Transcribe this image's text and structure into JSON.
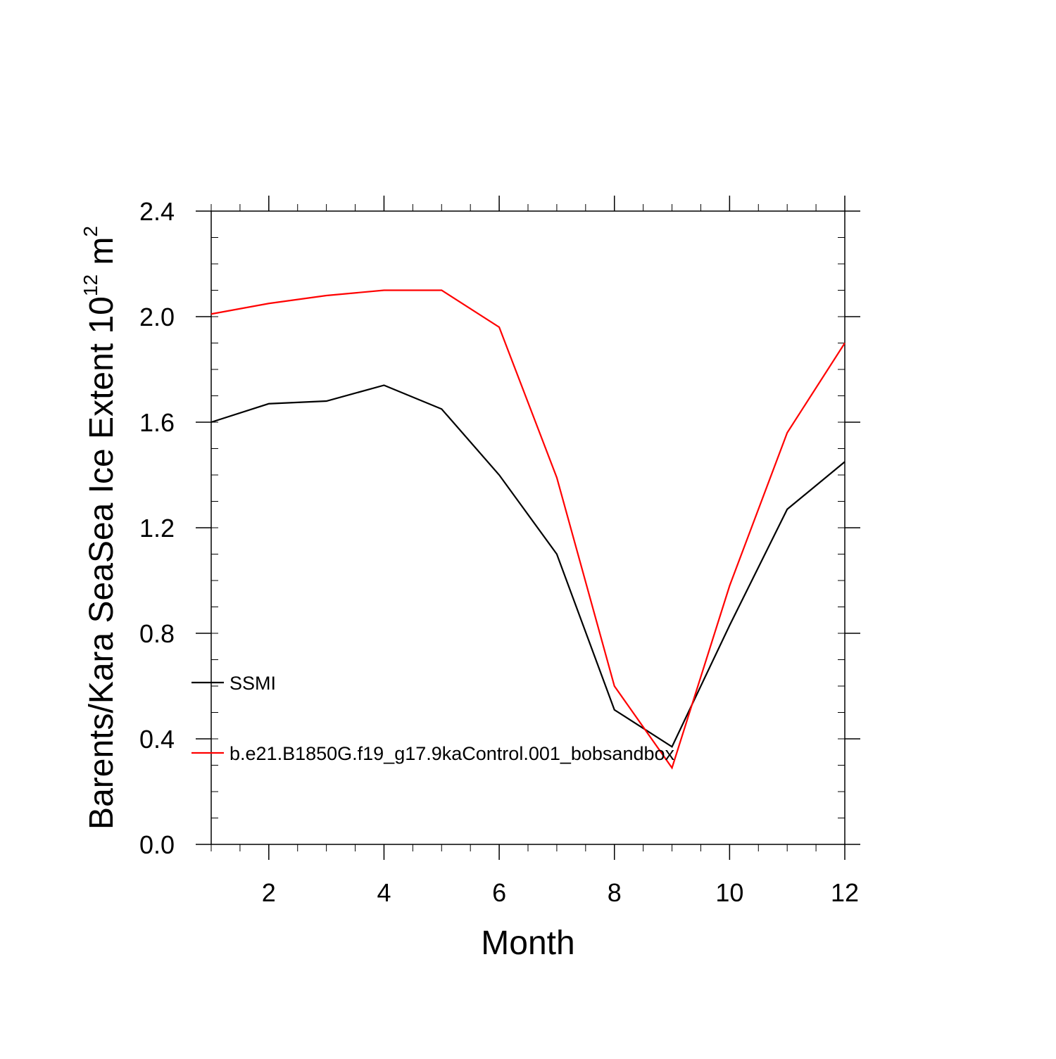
{
  "chart_data": {
    "type": "line",
    "title": "",
    "xlabel": "Month",
    "ylabel": {
      "prefix": "Barents/Kara SeaSea Ice Extent 10",
      "exponent": "12",
      "middle": " m",
      "unit_exponent": "2"
    },
    "xlim": [
      1,
      12
    ],
    "ylim": [
      0.0,
      2.4
    ],
    "x_ticks": [
      2,
      4,
      6,
      8,
      10,
      12
    ],
    "x_tick_labels": [
      "2",
      "4",
      "6",
      "8",
      "10",
      "12"
    ],
    "y_ticks": [
      0.0,
      0.4,
      0.8,
      1.2,
      1.6,
      2.0,
      2.4
    ],
    "y_tick_labels": [
      "0.0",
      "0.4",
      "0.8",
      "1.2",
      "1.6",
      "2.0",
      "2.4"
    ],
    "grid": false,
    "legend_placement": "lower-left inside",
    "x": [
      1,
      2,
      3,
      4,
      5,
      6,
      7,
      8,
      9,
      10,
      11,
      12
    ],
    "series": [
      {
        "name": "SSMI",
        "color": "#000000",
        "values": [
          1.6,
          1.67,
          1.68,
          1.74,
          1.65,
          1.4,
          1.1,
          0.51,
          0.37,
          0.83,
          1.27,
          1.45
        ]
      },
      {
        "name": "b.e21.B1850G.f19_g17.9kaControl.001_bobsandbox",
        "color": "#ff0000",
        "values": [
          2.01,
          2.05,
          2.08,
          2.1,
          2.1,
          1.96,
          1.39,
          0.6,
          0.29,
          0.98,
          1.56,
          1.9
        ]
      }
    ]
  }
}
